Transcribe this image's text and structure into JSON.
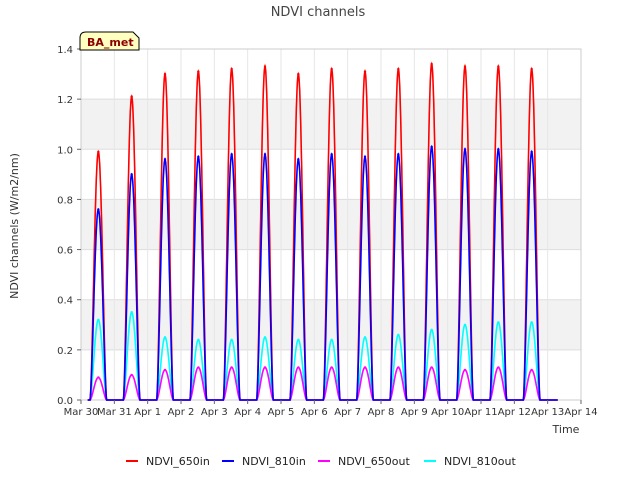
{
  "chart_data": {
    "type": "line",
    "title": "NDVI channels",
    "xlabel": "Time",
    "ylabel": "NDVI channels (W/m2/nm)",
    "badge": "BA_met",
    "ylim": [
      0.0,
      1.4
    ],
    "yticks": [
      "0.0",
      "0.2",
      "0.4",
      "0.6",
      "0.8",
      "1.0",
      "1.2",
      "1.4"
    ],
    "xlim": [
      0,
      15
    ],
    "xticks": [
      "Mar 30",
      "Mar 31",
      "Apr 1",
      "Apr 2",
      "Apr 3",
      "Apr 4",
      "Apr 5",
      "Apr 6",
      "Apr 7",
      "Apr 8",
      "Apr 9",
      "Apr 10",
      "Apr 11",
      "Apr 12",
      "Apr 13",
      "Apr 14"
    ],
    "series": [
      {
        "name": "NDVI_650in",
        "color": "#ff0000",
        "peaks": [
          0.99,
          1.21,
          1.3,
          1.31,
          1.32,
          1.33,
          1.3,
          1.32,
          1.31,
          1.32,
          1.34,
          1.33,
          1.33,
          1.32
        ]
      },
      {
        "name": "NDVI_810in",
        "color": "#0000ff",
        "peaks": [
          0.76,
          0.9,
          0.96,
          0.97,
          0.98,
          0.98,
          0.96,
          0.98,
          0.97,
          0.98,
          1.01,
          1.0,
          1.0,
          0.99
        ]
      },
      {
        "name": "NDVI_650out",
        "color": "#ff00ff",
        "peaks": [
          0.09,
          0.1,
          0.12,
          0.13,
          0.13,
          0.13,
          0.13,
          0.13,
          0.13,
          0.13,
          0.13,
          0.12,
          0.13,
          0.12
        ]
      },
      {
        "name": "NDVI_810out",
        "color": "#00ffff",
        "peaks": [
          0.32,
          0.35,
          0.25,
          0.24,
          0.24,
          0.25,
          0.24,
          0.24,
          0.25,
          0.26,
          0.28,
          0.3,
          0.31,
          0.31
        ]
      }
    ]
  }
}
